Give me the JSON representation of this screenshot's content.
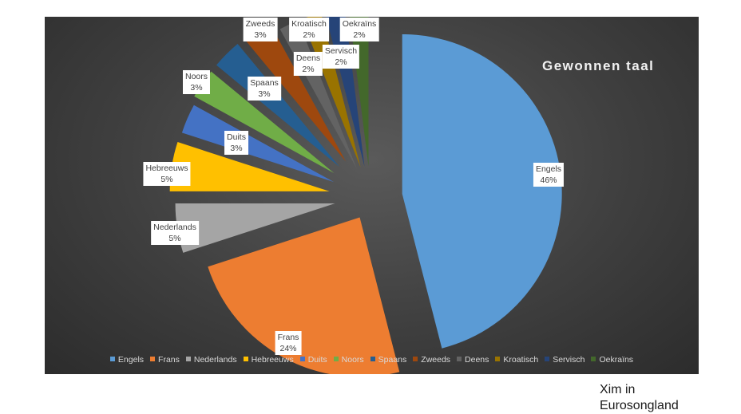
{
  "chart_data": {
    "type": "pie",
    "title": "Gewonnen taal",
    "exploded": true,
    "slices": [
      {
        "name": "Engels",
        "value": 46,
        "label": "46%",
        "color": "#5b9bd5"
      },
      {
        "name": "Frans",
        "value": 24,
        "label": "24%",
        "color": "#ed7d31"
      },
      {
        "name": "Nederlands",
        "value": 5,
        "label": "5%",
        "color": "#a5a5a5"
      },
      {
        "name": "Hebreeuws",
        "value": 5,
        "label": "5%",
        "color": "#ffc000"
      },
      {
        "name": "Duits",
        "value": 3,
        "label": "3%",
        "color": "#4472c4"
      },
      {
        "name": "Noors",
        "value": 3,
        "label": "3%",
        "color": "#70ad47"
      },
      {
        "name": "Spaans",
        "value": 3,
        "label": "3%",
        "color": "#255e91"
      },
      {
        "name": "Zweeds",
        "value": 3,
        "label": "3%",
        "color": "#9e480e"
      },
      {
        "name": "Deens",
        "value": 2,
        "label": "2%",
        "color": "#636363"
      },
      {
        "name": "Kroatisch",
        "value": 2,
        "label": "2%",
        "color": "#997300"
      },
      {
        "name": "Servisch",
        "value": 2,
        "label": "2%",
        "color": "#264478"
      },
      {
        "name": "Oekraïns",
        "value": 2,
        "label": "2%",
        "color": "#43682b"
      }
    ],
    "legend_position": "bottom"
  },
  "caption": {
    "line1": "Xim in",
    "line2": "Eurosongland"
  }
}
